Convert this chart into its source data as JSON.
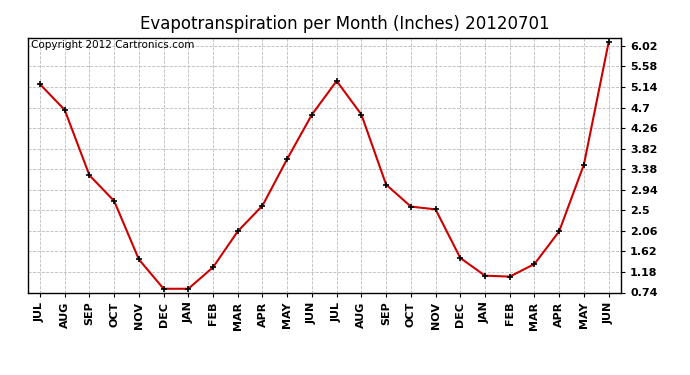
{
  "title": "Evapotranspiration per Month (Inches) 20120701",
  "copyright": "Copyright 2012 Cartronics.com",
  "x_labels": [
    "JUL",
    "AUG",
    "SEP",
    "OCT",
    "NOV",
    "DEC",
    "JAN",
    "FEB",
    "MAR",
    "APR",
    "MAY",
    "JUN",
    "JUL",
    "AUG",
    "SEP",
    "OCT",
    "NOV",
    "DEC",
    "JAN",
    "FEB",
    "MAR",
    "APR",
    "MAY",
    "JUN"
  ],
  "y_values": [
    5.2,
    4.65,
    3.25,
    2.7,
    1.45,
    0.82,
    0.82,
    1.28,
    2.05,
    2.6,
    3.6,
    4.55,
    5.27,
    4.55,
    3.05,
    2.58,
    2.52,
    1.48,
    1.1,
    1.08,
    1.35,
    2.05,
    3.48,
    6.1
  ],
  "line_color": "#cc0000",
  "background_color": "#ffffff",
  "grid_color": "#bbbbbb",
  "y_ticks": [
    0.74,
    1.18,
    1.62,
    2.06,
    2.5,
    2.94,
    3.38,
    3.82,
    4.26,
    4.7,
    5.14,
    5.58,
    6.02
  ],
  "ylim": [
    0.74,
    6.2
  ],
  "title_fontsize": 12,
  "tick_fontsize": 8,
  "copyright_fontsize": 7.5
}
